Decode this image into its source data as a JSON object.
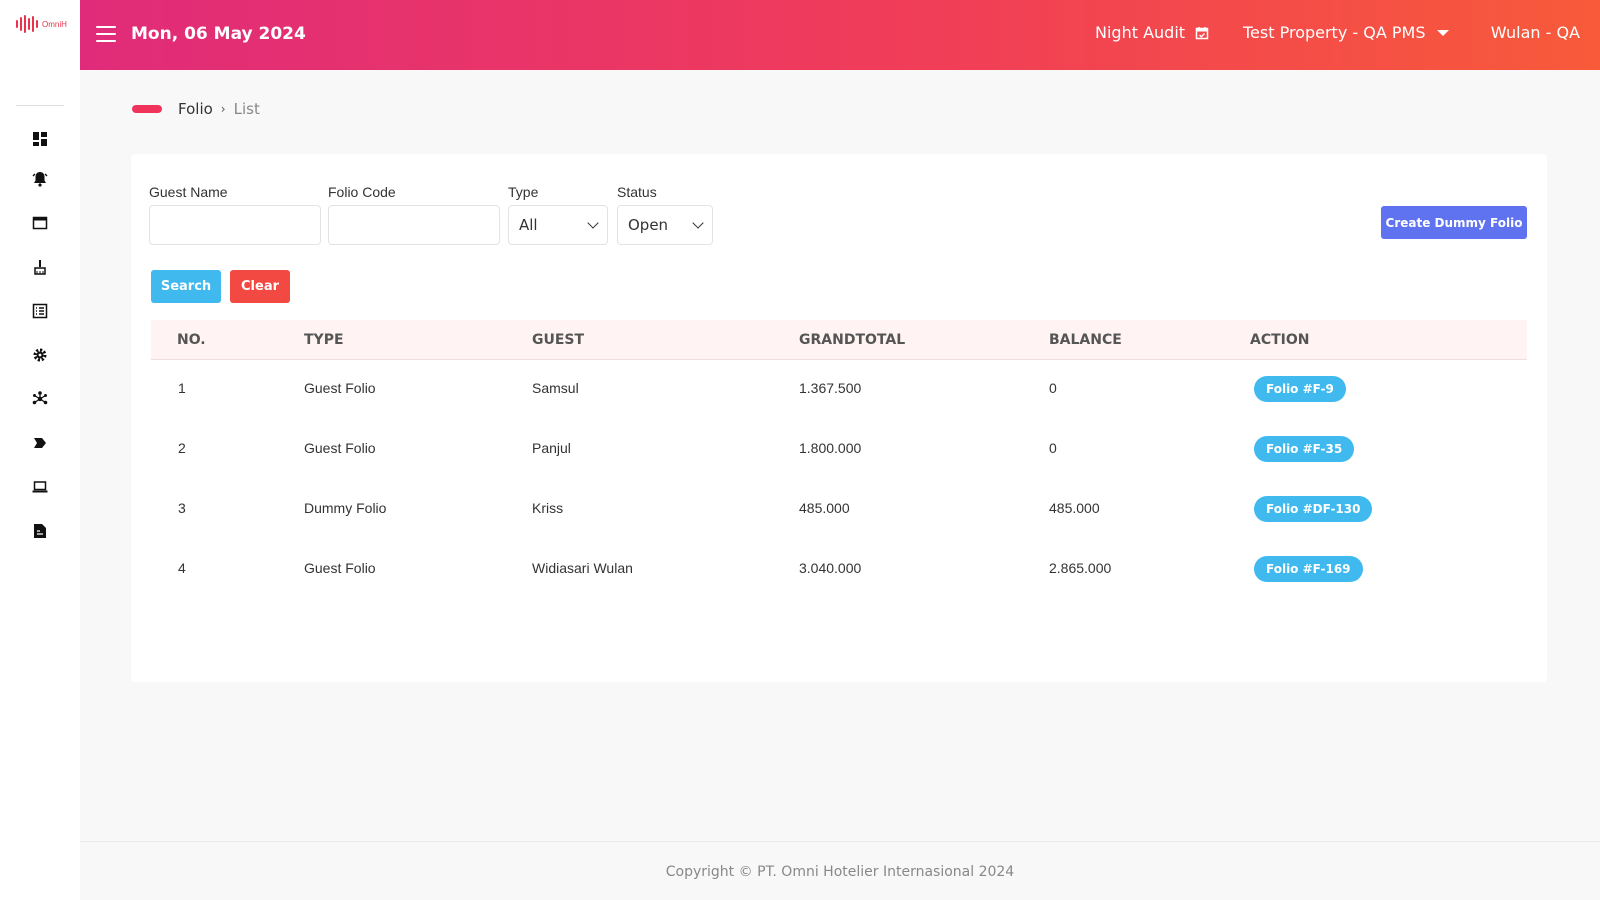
{
  "brand": {
    "logo_text": "OmniH",
    "accent": "#f0335a"
  },
  "header": {
    "date": "Mon, 06 May 2024",
    "night_audit": "Night Audit",
    "property": "Test Property - QA PMS",
    "user": "Wulan - QA"
  },
  "sidebar": {
    "icons": [
      "dashboard-icon",
      "bell-icon",
      "window-icon",
      "broom-icon",
      "list-icon",
      "gear-icon",
      "network-icon",
      "tag-arrow-icon",
      "laptop-icon",
      "document-icon"
    ]
  },
  "breadcrumb": {
    "parent": "Folio",
    "current": "List"
  },
  "filters": {
    "guest_name": {
      "label": "Guest Name",
      "value": ""
    },
    "folio_code": {
      "label": "Folio Code",
      "value": ""
    },
    "type": {
      "label": "Type",
      "value": "All"
    },
    "status": {
      "label": "Status",
      "value": "Open"
    }
  },
  "buttons": {
    "search": "Search",
    "clear": "Clear",
    "create_dummy": "Create Dummy Folio"
  },
  "table": {
    "headers": [
      "NO.",
      "TYPE",
      "GUEST",
      "GRANDTOTAL",
      "BALANCE",
      "ACTION"
    ],
    "rows": [
      {
        "no": "1",
        "type": "Guest Folio",
        "guest": "Samsul",
        "grandtotal": "1.367.500",
        "balance": "0",
        "action": "Folio #F-9"
      },
      {
        "no": "2",
        "type": "Guest Folio",
        "guest": "Panjul",
        "grandtotal": "1.800.000",
        "balance": "0",
        "action": "Folio #F-35"
      },
      {
        "no": "3",
        "type": "Dummy Folio",
        "guest": "Kriss",
        "grandtotal": "485.000",
        "balance": "485.000",
        "action": "Folio #DF-130"
      },
      {
        "no": "4",
        "type": "Guest Folio",
        "guest": "Widiasari Wulan",
        "grandtotal": "3.040.000",
        "balance": "2.865.000",
        "action": "Folio #F-169"
      }
    ]
  },
  "footer": {
    "copyright": "Copyright © PT. Omni Hotelier Internasional 2024"
  }
}
